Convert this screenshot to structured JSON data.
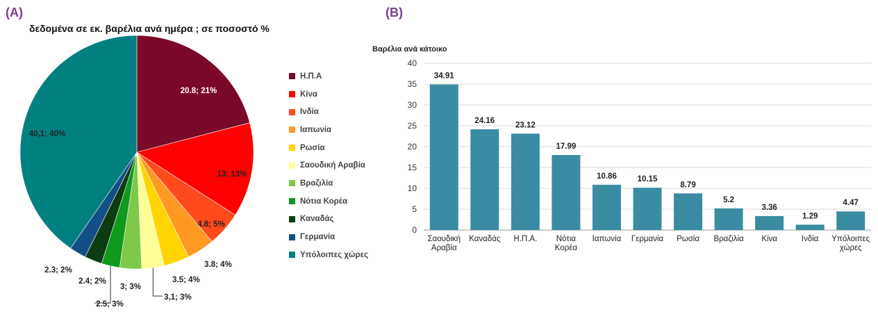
{
  "panels": {
    "a_label": "(A)",
    "b_label": "(B)"
  },
  "chart_data": [
    {
      "type": "pie",
      "title": "δεδομένα σε εκ. βαρέλια ανά ημέρα ; σε ποσοστό %",
      "slices": [
        {
          "label": "Η.Π.Α",
          "value": 20.8,
          "percent": 21,
          "data_label": "20.8; 21%",
          "color": "#7b0a2a"
        },
        {
          "label": "Κίνα",
          "value": 13,
          "percent": 13,
          "data_label": "13; 13%",
          "color": "#ff0000"
        },
        {
          "label": "Ινδία",
          "value": 4.8,
          "percent": 5,
          "data_label": "4.8; 5%",
          "color": "#ff4a1c"
        },
        {
          "label": "Ιαπωνία",
          "value": 3.8,
          "percent": 4,
          "data_label": "3.8; 4%",
          "color": "#ff9922"
        },
        {
          "label": "Ρωσία",
          "value": 3.5,
          "percent": 4,
          "data_label": "3.5; 4%",
          "color": "#ffd400"
        },
        {
          "label": "Σαουδική Αραβία",
          "value": 3.1,
          "percent": 3,
          "data_label": "3,1; 3%",
          "color": "#ffff99"
        },
        {
          "label": "Βραζιλία",
          "value": 3,
          "percent": 3,
          "data_label": "3; 3%",
          "color": "#7ec84a"
        },
        {
          "label": "Νότια Κορέα",
          "value": 2.5,
          "percent": 3,
          "data_label": "2.5; 3%",
          "color": "#0f9a1e"
        },
        {
          "label": "Καναδάς",
          "value": 2.4,
          "percent": 2,
          "data_label": "2.4; 2%",
          "color": "#0c3d12"
        },
        {
          "label": "Γερμανία",
          "value": 2.3,
          "percent": 2,
          "data_label": "2.3; 2%",
          "color": "#124f86"
        },
        {
          "label": "Υπόλοιπες χώρες",
          "value": 40.1,
          "percent": 40,
          "data_label": "40,1; 40%",
          "color": "#008080"
        }
      ]
    },
    {
      "type": "bar",
      "ylabel": "Βαρέλια ανά κάτοικο",
      "ylim": [
        0,
        40
      ],
      "yticks": [
        0,
        5,
        10,
        15,
        20,
        25,
        30,
        35,
        40
      ],
      "grid": true,
      "bar_color": "#3a8ca3",
      "categories": [
        [
          "Σαουδική",
          "Αραβία"
        ],
        [
          "Καναδάς"
        ],
        [
          "Η.Π.Α."
        ],
        [
          "Νότια",
          "Κορέα"
        ],
        [
          "Ιαπωνία"
        ],
        [
          "Γερμανία"
        ],
        [
          "Ρωσία"
        ],
        [
          "Βραζιλία"
        ],
        [
          "Κίνα"
        ],
        [
          "Ινδία"
        ],
        [
          "Υπόλοιπες",
          "χώρες"
        ]
      ],
      "values": [
        34.91,
        24.16,
        23.12,
        17.99,
        10.86,
        10.15,
        8.79,
        5.2,
        3.36,
        1.29,
        4.47
      ],
      "data_labels": [
        "34.91",
        "24.16",
        "23.12",
        "17.99",
        "10.86",
        "10.15",
        "8.79",
        "5.2",
        "3.36",
        "1.29",
        "4.47"
      ]
    }
  ]
}
